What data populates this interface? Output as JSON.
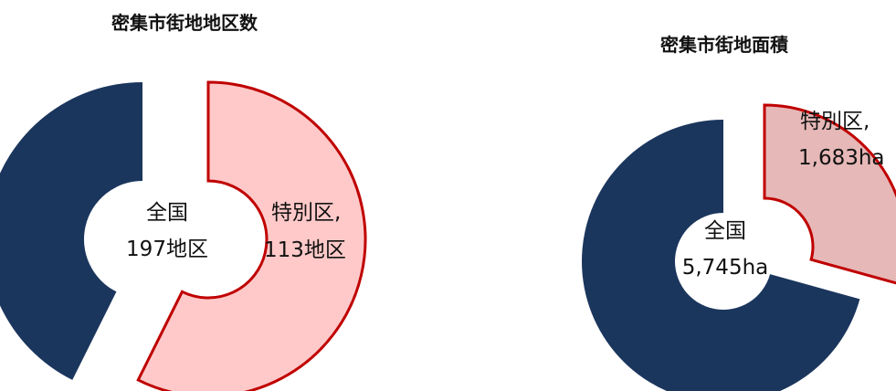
{
  "colors": {
    "national": "#1b365d",
    "special_district": "#ffc9c9",
    "special_district_alt": "#e6b8b7",
    "special_outline": "#c00000"
  },
  "chart_data": [
    {
      "type": "pie",
      "variant": "donut",
      "title": "密集市街地地区数",
      "center_label": [
        "全国",
        "197地区"
      ],
      "slices": [
        {
          "name": "全国",
          "value": 84
        },
        {
          "name": "特別区",
          "value": 113
        }
      ],
      "data_label": [
        "特別区,",
        "113地区"
      ]
    },
    {
      "type": "pie",
      "variant": "donut",
      "title": "密集市街地面積",
      "center_label": [
        "全国",
        "5,745ha"
      ],
      "slices": [
        {
          "name": "全国",
          "value": 4062
        },
        {
          "name": "特別区",
          "value": 1683
        }
      ],
      "data_label": [
        "特別区,",
        "1,683ha"
      ]
    }
  ]
}
